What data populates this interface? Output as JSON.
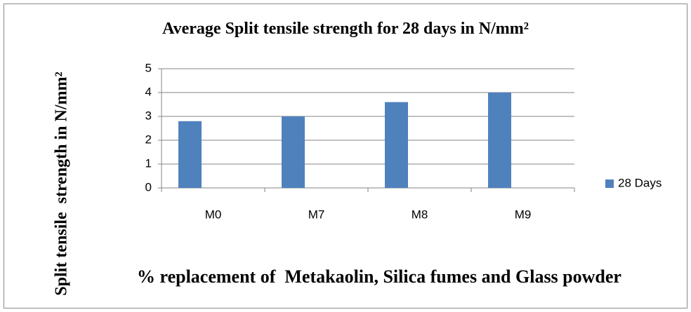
{
  "chart_data": {
    "type": "bar",
    "title": "Average Split tensile strength for 28 days in N/mm²",
    "x_label": "% replacement of  Metakaolin, Silica fumes and Glass powder",
    "y_label": "Split tensile  strength in N/mm²",
    "categories": [
      "M0",
      "M7",
      "M8",
      "M9"
    ],
    "series": [
      {
        "name": "28 Days",
        "color": "#4f81bd",
        "values": [
          2.8,
          3.0,
          3.6,
          4.0
        ]
      }
    ],
    "ylim": [
      0,
      5
    ],
    "yticks": [
      0,
      1,
      2,
      3,
      4,
      5
    ],
    "grid": true,
    "legend": "right"
  }
}
